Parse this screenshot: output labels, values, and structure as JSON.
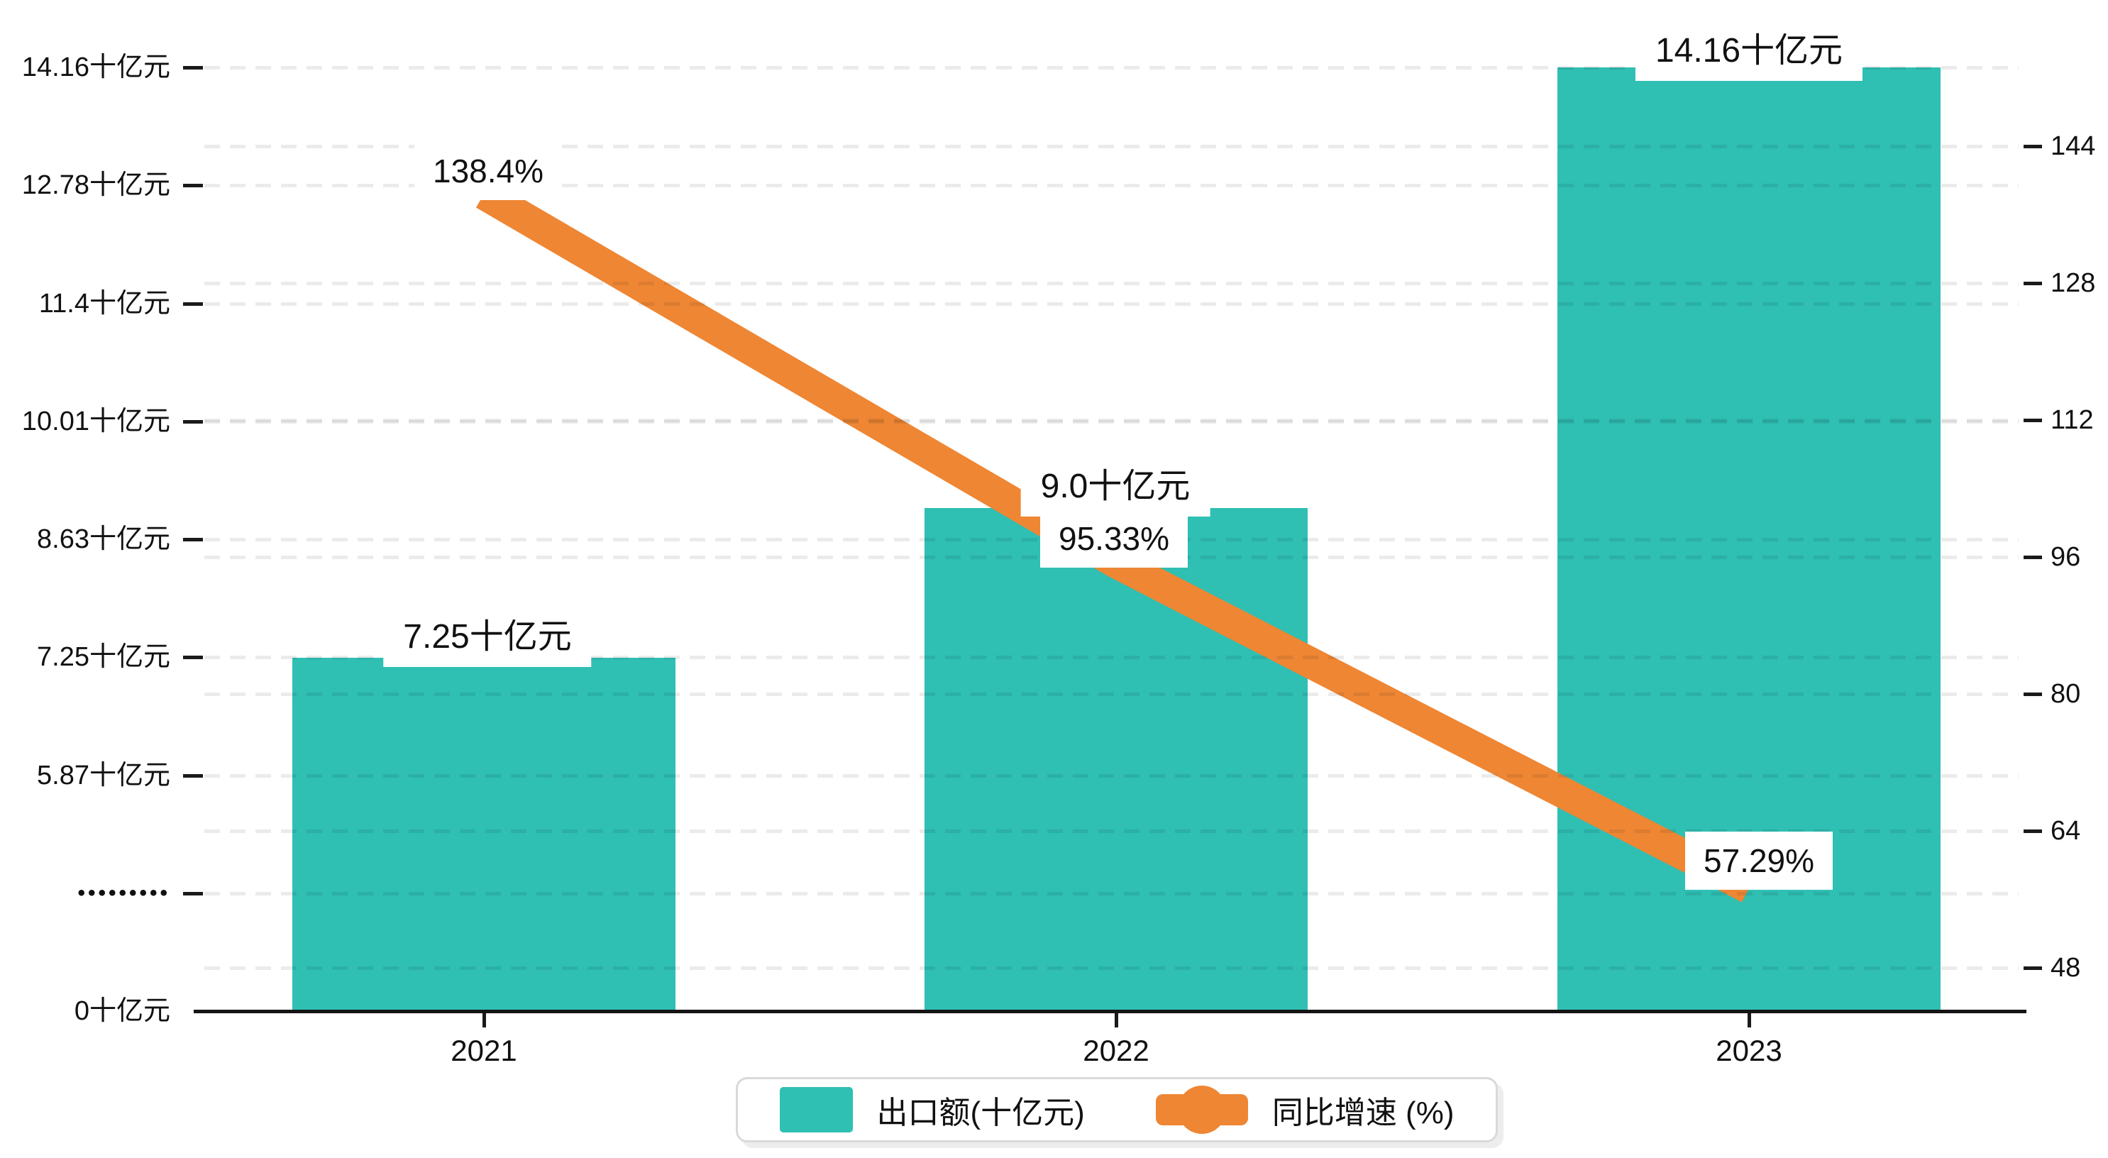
{
  "chart_data": {
    "type": "bar",
    "subtype": "combo bar+line, dual y-axis, broken left value axis",
    "categories": [
      "2021",
      "2022",
      "2023"
    ],
    "series": [
      {
        "name": "出口额(十亿元)",
        "type": "bar",
        "axis": "left",
        "values": [
          7.25,
          9.0,
          14.16
        ],
        "value_labels": [
          "7.25十亿元",
          "9.0十亿元",
          "14.16十亿元"
        ]
      },
      {
        "name": "同比增速 (%)",
        "type": "line",
        "axis": "right",
        "values": [
          138.4,
          95.33,
          57.29
        ],
        "value_labels": [
          "138.4%",
          "95.33%",
          "57.29%"
        ]
      }
    ],
    "left_axis": {
      "tick_labels": [
        "14.16十亿元",
        "12.78十亿元",
        "11.4十亿元",
        "10.01十亿元",
        "8.63十亿元",
        "7.25十亿元",
        "5.87十亿元",
        "•••••••••",
        "0十亿元"
      ],
      "break_marker": "•••••••••",
      "unit": "十亿元"
    },
    "right_axis": {
      "tick_labels": [
        "144",
        "128",
        "112",
        "96",
        "80",
        "64",
        "48"
      ],
      "tick_values": [
        144,
        128,
        112,
        96,
        80,
        64,
        48
      ]
    },
    "x_axis": {
      "tick_labels": [
        "2021",
        "2022",
        "2023"
      ]
    },
    "legend": [
      {
        "label": "出口额(十亿元)"
      },
      {
        "label": "同比增速 (%)"
      }
    ],
    "grid": "horizontal dashed",
    "legend_position": "bottom-center"
  },
  "colors": {
    "bar": "#2FBFB3",
    "line": "#EE8634",
    "text": "#111111",
    "grid": "rgba(0,0,0,0.08)",
    "label_bg": "#ffffff",
    "legend_border": "#d9d9d9",
    "background": "#ffffff"
  }
}
